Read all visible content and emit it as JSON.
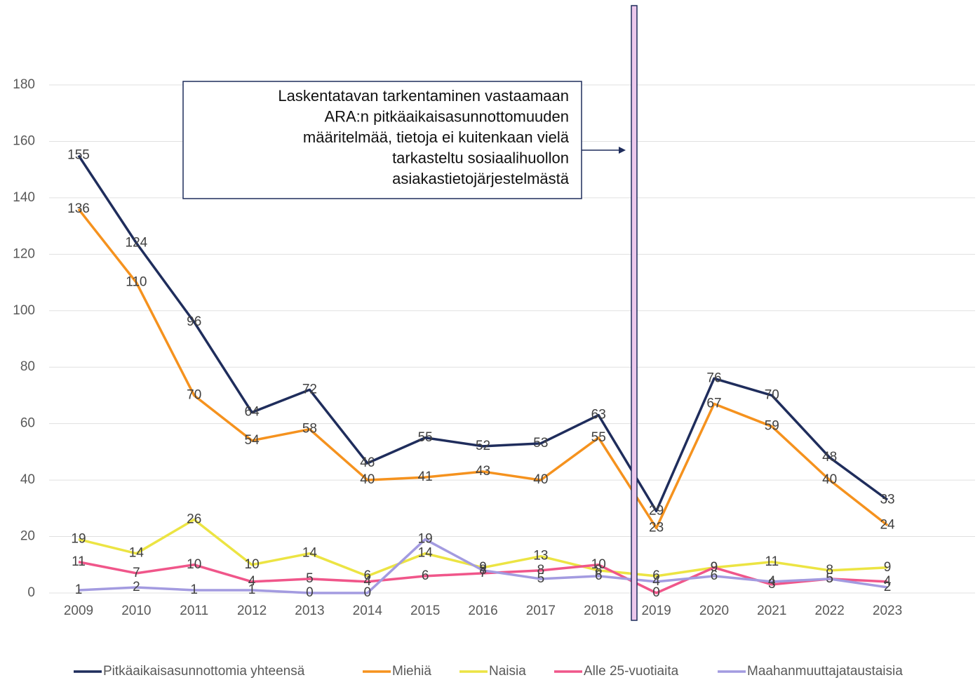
{
  "chart_data": {
    "type": "line",
    "categories": [
      "2009",
      "2010",
      "2011",
      "2012",
      "2013",
      "2014",
      "2015",
      "2016",
      "2017",
      "2018",
      "2019",
      "2020",
      "2021",
      "2022",
      "2023"
    ],
    "series": [
      {
        "name": "Pitkäaikaisasunnottomia yhteensä",
        "color": "#1f2d5c",
        "values": [
          155,
          124,
          96,
          64,
          72,
          46,
          55,
          52,
          53,
          63,
          29,
          76,
          70,
          48,
          33
        ]
      },
      {
        "name": "Miehiä",
        "color": "#f5921e",
        "values": [
          136,
          110,
          70,
          54,
          58,
          40,
          41,
          43,
          40,
          55,
          23,
          67,
          59,
          40,
          24
        ]
      },
      {
        "name": "Naisia",
        "color": "#ece443",
        "values": [
          19,
          14,
          26,
          10,
          14,
          6,
          14,
          9,
          13,
          8,
          6,
          9,
          11,
          8,
          9
        ]
      },
      {
        "name": "Alle 25-vuotiaita",
        "color": "#f0568a",
        "values": [
          11,
          7,
          10,
          4,
          5,
          4,
          6,
          7,
          8,
          10,
          0,
          9,
          3,
          5,
          4
        ]
      },
      {
        "name": "Maahanmuuttajataustaisia",
        "color": "#a39be0",
        "values": [
          1,
          2,
          1,
          1,
          0,
          0,
          19,
          8,
          5,
          6,
          4,
          6,
          4,
          5,
          2
        ]
      }
    ],
    "ylim": [
      0,
      180
    ],
    "yticks": [
      0,
      20,
      40,
      60,
      80,
      100,
      120,
      140,
      160,
      180
    ],
    "grid": true,
    "annotation": [
      "Laskentatavan tarkentaminen vastaamaan",
      "ARA:n pitkäaikaisasunnottomuuden",
      "määritelmää, tietoja ei kuitenkaan vielä",
      "tarkasteltu sosiaalihuollon",
      "asiakastietojärjestelmästä"
    ],
    "legend": "bottom"
  }
}
